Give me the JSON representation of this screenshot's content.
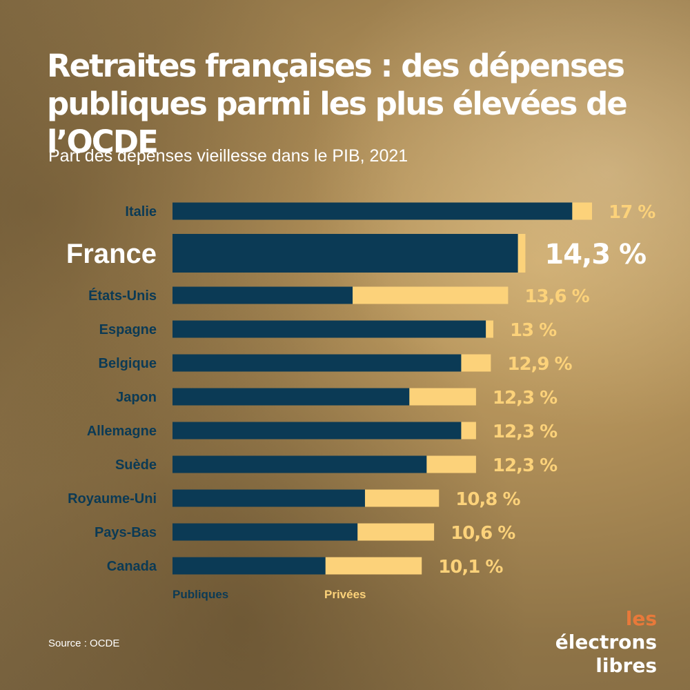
{
  "title": "Retraites françaises : des dépenses publiques parmi les plus élevées de l’OCDE",
  "subtitle": "Part des dépenses vieillesse dans le PIB, 2021",
  "legend": {
    "public": "Publiques",
    "private": "Privées"
  },
  "source": "Source : OCDE",
  "logo": {
    "line1_a": "les",
    "line1_b": "électrons",
    "line2": "libres"
  },
  "colors": {
    "public": "#0b3a55",
    "private": "#fcd27a",
    "highlight_text": "#ffffff",
    "label_text": "#0b3a55",
    "logo_accent": "#e8793a"
  },
  "chart_data": {
    "type": "bar",
    "orientation": "horizontal",
    "stacked": true,
    "categories": [
      "Italie",
      "France",
      "États-Unis",
      "Espagne",
      "Belgique",
      "Japon",
      "Allemagne",
      "Suède",
      "Royaume-Uni",
      "Pays-Bas",
      "Canada"
    ],
    "series": [
      {
        "name": "Publiques",
        "values": [
          16.2,
          14.0,
          7.3,
          12.7,
          11.7,
          9.6,
          11.7,
          10.3,
          7.8,
          7.5,
          6.2
        ]
      },
      {
        "name": "Privées",
        "values": [
          0.8,
          0.3,
          6.3,
          0.3,
          1.2,
          2.7,
          0.6,
          2.0,
          3.0,
          3.1,
          3.9
        ]
      }
    ],
    "totals": [
      17,
      14.3,
      13.6,
      13,
      12.9,
      12.3,
      12.3,
      12.3,
      10.8,
      10.6,
      10.1
    ],
    "value_labels": [
      "17 %",
      "14,3 %",
      "13,6 %",
      "13 %",
      "12,9 %",
      "12,3 %",
      "12,3 %",
      "12,3 %",
      "10,8 %",
      "10,6 %",
      "10,1 %"
    ],
    "highlight": "France",
    "xlim": [
      0,
      17
    ],
    "grid": false,
    "legend_position": "bottom-left"
  }
}
